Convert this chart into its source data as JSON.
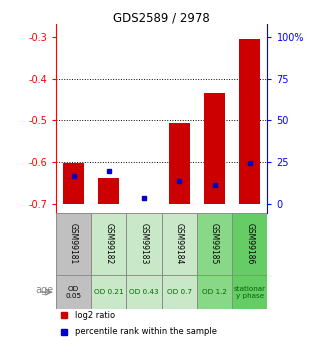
{
  "title": "GDS2589 / 2978",
  "samples": [
    "GSM99181",
    "GSM99182",
    "GSM99183",
    "GSM99184",
    "GSM99185",
    "GSM99186"
  ],
  "log2_values": [
    -0.601,
    -0.637,
    -0.7,
    -0.505,
    -0.435,
    -0.305
  ],
  "bar_bottom": -0.7,
  "percentile_values": [
    -0.632,
    -0.622,
    -0.685,
    -0.645,
    -0.655,
    -0.602
  ],
  "ylim_left": [
    -0.72,
    -0.27
  ],
  "yticks_left": [
    -0.7,
    -0.6,
    -0.5,
    -0.4,
    -0.3
  ],
  "right_tick_positions": [
    -0.7,
    -0.6,
    -0.5,
    -0.4,
    -0.3
  ],
  "right_tick_labels": [
    "0",
    "25",
    "50",
    "75",
    "100%"
  ],
  "bar_color": "#cc0000",
  "blue_color": "#0000cc",
  "sample_bg_colors": [
    "#c0c0c0",
    "#c8e8c8",
    "#c8e8c8",
    "#c8e8c8",
    "#88d888",
    "#66cc66"
  ],
  "age_labels": [
    "OD\n0.05",
    "OD 0.21",
    "OD 0.43",
    "OD 0.7",
    "OD 1.2",
    "stationar\ny phase"
  ],
  "age_label_colors": [
    "#000000",
    "#006600",
    "#006600",
    "#006600",
    "#006600",
    "#006600"
  ],
  "legend_log2": "log2 ratio",
  "legend_pct": "percentile rank within the sample"
}
